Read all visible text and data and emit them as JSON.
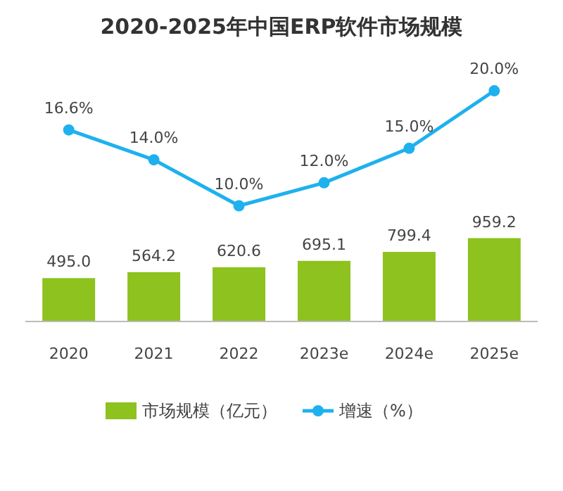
{
  "chart_data": [
    {
      "type": "bar",
      "categories": [
        "2020",
        "2021",
        "2022",
        "2023e",
        "2024e",
        "2025e"
      ],
      "series": [
        {
          "name": "市场规模（亿元）",
          "color": "#8dc21f",
          "values": [
            495.0,
            564.2,
            620.6,
            695.1,
            799.4,
            959.2
          ],
          "value_labels": [
            "495.0",
            "564.2",
            "620.6",
            "695.1",
            "799.4",
            "959.2"
          ]
        }
      ],
      "legend": "bottom"
    },
    {
      "type": "line",
      "title": "2020-2025年中国ERP软件市场规模",
      "categories": [
        null,
        null,
        null,
        null,
        null,
        null
      ],
      "series": [
        {
          "name": "增速（%）",
          "color": "#1eb1ee",
          "values": [
            16.6,
            14.0,
            10.0,
            12.0,
            15.0,
            20.0
          ],
          "value_labels": [
            "16.6%",
            "14.0%",
            "10.0%",
            "12.0%",
            "15.0%",
            "20.0%"
          ]
        }
      ],
      "marker": "circle",
      "legend": "bottom"
    }
  ]
}
